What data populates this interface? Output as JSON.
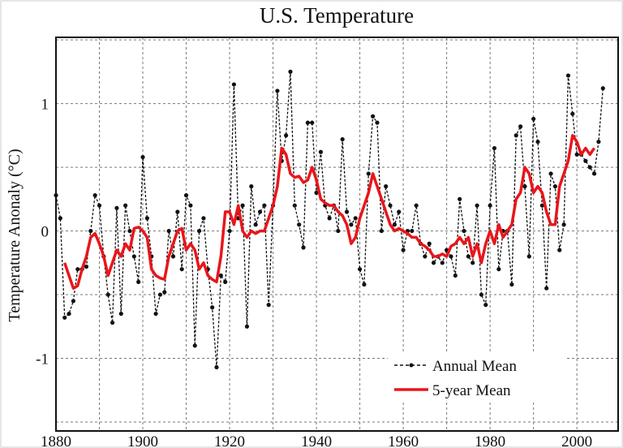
{
  "chart_data": {
    "type": "line",
    "title": "U.S. Temperature",
    "xlabel": "",
    "ylabel": "Temperature Anonaly (°C)",
    "xlim": [
      1880,
      2009.5
    ],
    "ylim": [
      -1.57,
      1.52
    ],
    "x_ticks": [
      1880,
      1900,
      1920,
      1940,
      1960,
      1980,
      2000
    ],
    "x_tick_labels": [
      "1880",
      "1900",
      "1920",
      "1940",
      "1960",
      "1980",
      "2000"
    ],
    "y_ticks": [
      1,
      0,
      -1
    ],
    "y_tick_labels": [
      "1",
      "0",
      "-1"
    ],
    "grid": true,
    "grid_x_step": 10,
    "grid_y_step": 0.5,
    "legend_position": "bottom-right",
    "series": [
      {
        "name": "Annual Mean",
        "color": "#111111",
        "style": "dashed-with-markers",
        "x_start": 1880,
        "values": [
          0.28,
          0.1,
          -0.68,
          -0.65,
          -0.55,
          -0.3,
          -0.3,
          -0.28,
          0.0,
          0.28,
          0.2,
          -0.2,
          -0.5,
          -0.72,
          0.18,
          -0.65,
          0.2,
          0.0,
          -0.2,
          -0.4,
          0.58,
          0.1,
          -0.2,
          -0.65,
          -0.5,
          -0.48,
          0.0,
          -0.2,
          0.15,
          -0.3,
          0.28,
          0.2,
          -0.9,
          0.0,
          0.1,
          -0.3,
          -0.6,
          -1.07,
          -0.35,
          -0.4,
          0.0,
          1.15,
          0.1,
          0.2,
          -0.75,
          0.35,
          0.05,
          0.15,
          0.2,
          -0.58,
          0.2,
          1.1,
          0.55,
          0.75,
          1.25,
          0.2,
          0.05,
          -0.13,
          0.85,
          0.85,
          0.3,
          0.62,
          0.2,
          0.1,
          0.2,
          0.0,
          0.72,
          0.15,
          0.05,
          0.1,
          -0.3,
          -0.42,
          0.45,
          0.9,
          0.85,
          0.0,
          0.35,
          0.2,
          0.05,
          0.15,
          -0.15,
          0.0,
          0.0,
          0.2,
          -0.1,
          -0.2,
          -0.1,
          -0.25,
          -0.2,
          -0.25,
          -0.15,
          -0.2,
          -0.35,
          0.25,
          0.0,
          -0.2,
          -0.25,
          0.2,
          -0.5,
          -0.58,
          0.2,
          0.65,
          -0.3,
          0.0,
          0.0,
          -0.42,
          0.75,
          0.82,
          0.35,
          -0.2,
          0.88,
          0.7,
          0.2,
          -0.45,
          0.45,
          0.35,
          -0.15,
          0.05,
          1.22,
          0.92,
          0.6,
          0.6,
          0.55,
          0.5,
          0.45,
          0.7,
          1.12
        ]
      },
      {
        "name": "5-year Mean",
        "color": "#e8161b",
        "style": "solid",
        "x_start": 1882,
        "values": [
          -0.25,
          -0.35,
          -0.45,
          -0.43,
          -0.3,
          -0.2,
          -0.05,
          -0.02,
          -0.1,
          -0.2,
          -0.35,
          -0.25,
          -0.15,
          -0.2,
          -0.1,
          -0.15,
          0.02,
          0.03,
          0.0,
          -0.05,
          -0.3,
          -0.35,
          -0.37,
          -0.38,
          -0.2,
          -0.1,
          0.0,
          0.02,
          -0.15,
          -0.1,
          -0.15,
          -0.3,
          -0.25,
          -0.35,
          -0.38,
          -0.4,
          -0.2,
          0.15,
          0.15,
          0.05,
          0.2,
          0.0,
          -0.05,
          0.0,
          -0.02,
          0.0,
          0.0,
          0.1,
          0.2,
          0.35,
          0.65,
          0.6,
          0.45,
          0.42,
          0.43,
          0.38,
          0.4,
          0.5,
          0.4,
          0.25,
          0.22,
          0.2,
          0.2,
          0.15,
          0.12,
          0.05,
          -0.1,
          -0.05,
          0.1,
          0.2,
          0.3,
          0.45,
          0.35,
          0.25,
          0.15,
          0.05,
          0.0,
          0.02,
          0.0,
          -0.02,
          -0.05,
          -0.05,
          -0.1,
          -0.12,
          -0.15,
          -0.2,
          -0.2,
          -0.18,
          -0.2,
          -0.12,
          -0.1,
          -0.05,
          -0.1,
          -0.05,
          -0.2,
          -0.1,
          -0.25,
          -0.1,
          0.0,
          -0.1,
          0.05,
          -0.05,
          0.0,
          0.05,
          0.25,
          0.3,
          0.5,
          0.45,
          0.3,
          0.35,
          0.3,
          0.15,
          0.05,
          0.05,
          0.35,
          0.45,
          0.55,
          0.75,
          0.7,
          0.6,
          0.65,
          0.6,
          0.65
        ]
      }
    ]
  }
}
